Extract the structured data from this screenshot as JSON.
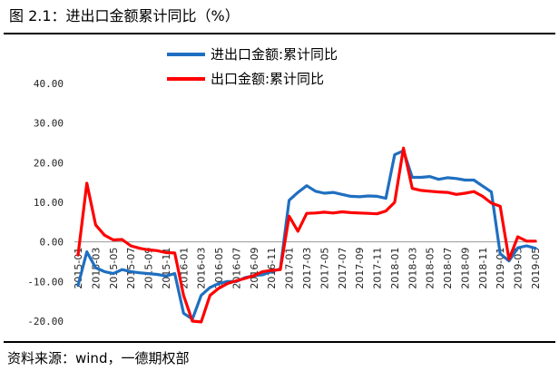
{
  "figure": {
    "title": "图 2.1：进出口金额累计同比（%）",
    "source": "资料来源：wind，一德期权部"
  },
  "colors": {
    "series1": "#1F6FC0",
    "series2": "#FF0000",
    "axis": "#999999"
  },
  "chart_data": {
    "type": "line",
    "title": "",
    "xlabel": "",
    "ylabel": "",
    "ylim": [
      -20,
      40
    ],
    "yticks": [
      -20,
      -10,
      0,
      10,
      20,
      30,
      40
    ],
    "ytick_labels": [
      "-20.00",
      "-10.00",
      "0.00",
      "10.00",
      "20.00",
      "30.00",
      "40.00"
    ],
    "grid": false,
    "legend_position": "top-center",
    "x": [
      "2015-01",
      "2015-02",
      "2015-03",
      "2015-04",
      "2015-05",
      "2015-06",
      "2015-07",
      "2015-08",
      "2015-09",
      "2015-10",
      "2015-11",
      "2015-12",
      "2016-01",
      "2016-02",
      "2016-03",
      "2016-04",
      "2016-05",
      "2016-06",
      "2016-07",
      "2016-08",
      "2016-09",
      "2016-10",
      "2016-11",
      "2016-12",
      "2017-01",
      "2017-02",
      "2017-03",
      "2017-04",
      "2017-05",
      "2017-06",
      "2017-07",
      "2017-08",
      "2017-09",
      "2017-10",
      "2017-11",
      "2017-12",
      "2018-01",
      "2018-02",
      "2018-03",
      "2018-04",
      "2018-05",
      "2018-06",
      "2018-07",
      "2018-08",
      "2018-09",
      "2018-10",
      "2018-11",
      "2018-12",
      "2019-01",
      "2019-02",
      "2019-03",
      "2019-04",
      "2019-05"
    ],
    "x_tick_labels": [
      "2015-01",
      "2015-03",
      "2015-05",
      "2015-07",
      "2015-09",
      "2015-11",
      "2016-01",
      "2016-03",
      "2016-05",
      "2016-07",
      "2016-09",
      "2016-11",
      "2017-01",
      "2017-03",
      "2017-05",
      "2017-07",
      "2017-09",
      "2017-11",
      "2018-01",
      "2018-03",
      "2018-05",
      "2018-07",
      "2018-09",
      "2018-11",
      "2019-01",
      "2019-03",
      "2019-05"
    ],
    "series": [
      {
        "name": "进出口金额:累计同比",
        "values": [
          -11.0,
          -2.5,
          -6.5,
          -7.5,
          -8.0,
          -7.0,
          -7.5,
          -7.8,
          -8.0,
          -8.2,
          -8.6,
          -8.0,
          -18.0,
          -19.5,
          -13.5,
          -11.5,
          -10.5,
          -10.0,
          -10.0,
          -9.0,
          -8.5,
          -8.3,
          -7.5,
          -6.8,
          10.5,
          12.5,
          14.2,
          12.8,
          12.3,
          12.5,
          12.0,
          11.5,
          11.4,
          11.6,
          11.5,
          11.0,
          22.0,
          23.0,
          16.3,
          16.3,
          16.5,
          15.8,
          16.2,
          16.0,
          15.6,
          15.6,
          14.1,
          12.6,
          -3.0,
          -4.8,
          -1.5,
          -1.0,
          -1.6
        ]
      },
      {
        "name": "出口金额:累计同比",
        "values": [
          -3.3,
          14.8,
          4.3,
          1.7,
          0.5,
          0.6,
          -1.0,
          -1.6,
          -2.0,
          -2.2,
          -2.7,
          -2.8,
          -13.5,
          -20.0,
          -20.2,
          -13.5,
          -11.7,
          -10.5,
          -9.8,
          -9.2,
          -8.5,
          -7.5,
          -7.2,
          -7.0,
          6.5,
          2.7,
          7.2,
          7.3,
          7.5,
          7.3,
          7.6,
          7.4,
          7.3,
          7.2,
          7.1,
          7.8,
          10.0,
          23.7,
          13.5,
          13.0,
          12.8,
          12.6,
          12.5,
          12.0,
          12.3,
          12.7,
          11.5,
          9.8,
          9.0,
          -4.4,
          1.3,
          0.2,
          0.2
        ]
      }
    ]
  }
}
